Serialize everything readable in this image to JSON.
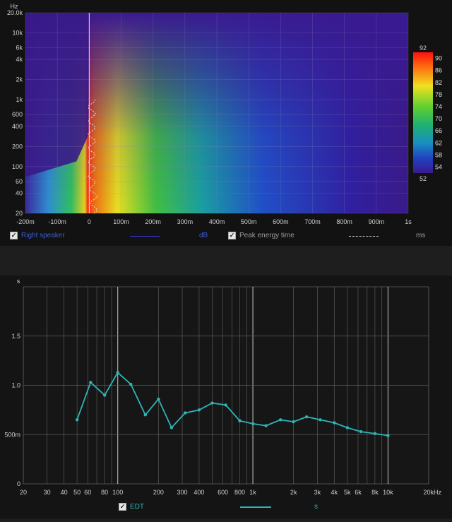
{
  "spectrogram": {
    "y_unit": "Hz",
    "y_ticks": [
      {
        "v": 20000,
        "l": "20.0k"
      },
      {
        "v": 10000,
        "l": "10k"
      },
      {
        "v": 6000,
        "l": "6k"
      },
      {
        "v": 4000,
        "l": "4k"
      },
      {
        "v": 2000,
        "l": "2k"
      },
      {
        "v": 1000,
        "l": "1k"
      },
      {
        "v": 600,
        "l": "600"
      },
      {
        "v": 400,
        "l": "400"
      },
      {
        "v": 200,
        "l": "200"
      },
      {
        "v": 100,
        "l": "100"
      },
      {
        "v": 60,
        "l": "60"
      },
      {
        "v": 40,
        "l": "40"
      },
      {
        "v": 20,
        "l": "20"
      }
    ],
    "x_ticks": [
      {
        "v": -200,
        "l": "-200m"
      },
      {
        "v": -100,
        "l": "-100m"
      },
      {
        "v": 0,
        "l": "0"
      },
      {
        "v": 100,
        "l": "100m"
      },
      {
        "v": 200,
        "l": "200m"
      },
      {
        "v": 300,
        "l": "300m"
      },
      {
        "v": 400,
        "l": "400m"
      },
      {
        "v": 500,
        "l": "500m"
      },
      {
        "v": 600,
        "l": "600m"
      },
      {
        "v": 700,
        "l": "700m"
      },
      {
        "v": 800,
        "l": "800m"
      },
      {
        "v": 900,
        "l": "900m"
      },
      {
        "v": 1000,
        "l": "1s"
      }
    ],
    "colorbar": {
      "top_label": "92",
      "bottom_label": "52",
      "ticks": [
        "90",
        "86",
        "82",
        "78",
        "74",
        "70",
        "66",
        "62",
        "58",
        "54"
      ],
      "min": 52,
      "max": 92
    }
  },
  "top_legend": {
    "series1_label": "Right speaker",
    "series1_unit": "dB",
    "series2_label": "Peak energy time",
    "series2_unit": "ms"
  },
  "chart_data": {
    "type": "line",
    "ylabel": "s",
    "xunit": "kHz",
    "x_scale": "log",
    "xlim": [
      20,
      20000
    ],
    "ylim": [
      0,
      2.0
    ],
    "grid": true,
    "y_ticks": [
      {
        "v": 0,
        "l": "0"
      },
      {
        "v": 0.5,
        "l": "500m"
      },
      {
        "v": 1.0,
        "l": "1.0"
      },
      {
        "v": 1.5,
        "l": "1.5"
      },
      {
        "v": 2.0,
        "l": "s"
      }
    ],
    "x_ticks": [
      {
        "v": 20,
        "l": "20"
      },
      {
        "v": 30,
        "l": "30"
      },
      {
        "v": 40,
        "l": "40"
      },
      {
        "v": 50,
        "l": "50"
      },
      {
        "v": 60,
        "l": "60"
      },
      {
        "v": 80,
        "l": "80"
      },
      {
        "v": 100,
        "l": "100"
      },
      {
        "v": 200,
        "l": "200"
      },
      {
        "v": 300,
        "l": "300"
      },
      {
        "v": 400,
        "l": "400"
      },
      {
        "v": 600,
        "l": "600"
      },
      {
        "v": 800,
        "l": "800"
      },
      {
        "v": 1000,
        "l": "1k"
      },
      {
        "v": 2000,
        "l": "2k"
      },
      {
        "v": 3000,
        "l": "3k"
      },
      {
        "v": 4000,
        "l": "4k"
      },
      {
        "v": 5000,
        "l": "5k"
      },
      {
        "v": 6000,
        "l": "6k"
      },
      {
        "v": 8000,
        "l": "8k"
      },
      {
        "v": 10000,
        "l": "10k"
      },
      {
        "v": 20000,
        "l": "20kHz"
      }
    ],
    "series": [
      {
        "name": "EDT",
        "unit": "s",
        "color": "#2fb4b6",
        "x": [
          50,
          63,
          80,
          100,
          125,
          160,
          200,
          250,
          315,
          400,
          500,
          630,
          800,
          1000,
          1250,
          1600,
          2000,
          2500,
          3150,
          4000,
          5000,
          6300,
          8000,
          10000
        ],
        "y": [
          0.65,
          1.03,
          0.9,
          1.13,
          1.01,
          0.7,
          0.86,
          0.57,
          0.72,
          0.75,
          0.82,
          0.8,
          0.64,
          0.61,
          0.59,
          0.65,
          0.63,
          0.68,
          0.65,
          0.62,
          0.57,
          0.53,
          0.51,
          0.49
        ]
      }
    ]
  }
}
